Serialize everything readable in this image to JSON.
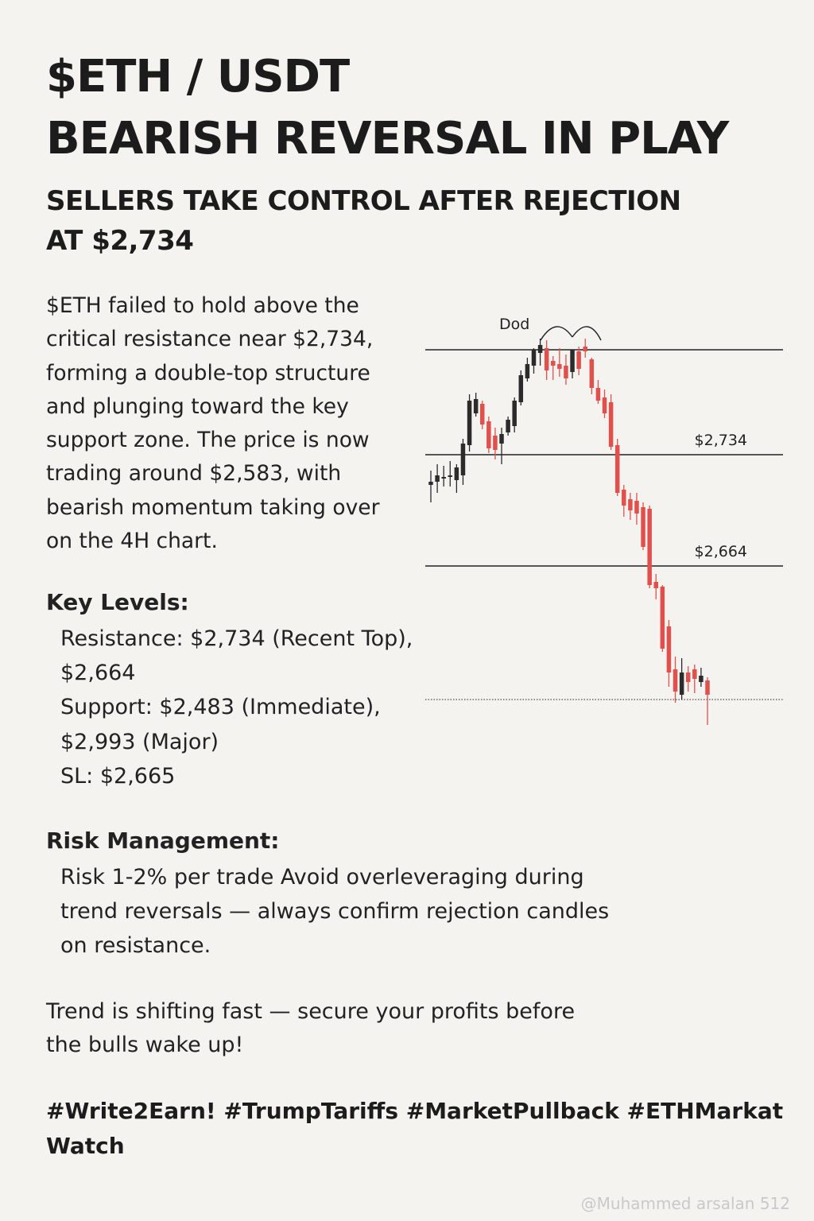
{
  "header": {
    "title_line1": "$ETH / USDT",
    "title_line2": "BEARISH REVERSAL IN PLAY",
    "subtitle_line1": "SELLERS TAKE CONTROL AFTER REJECTION",
    "subtitle_line2": "AT $2,734"
  },
  "intro": {
    "lines": [
      "$ETH failed to hold above the",
      "critical resistance near $2,734,",
      "forming a double-top structure",
      "and plunging toward the key",
      "support zone. The price is now",
      "trading around $2,583, with",
      "bearish momentum taking over",
      "on the 4H chart."
    ]
  },
  "key_levels": {
    "heading": "Key Levels:",
    "lines": [
      "Resistance: $2,734 (Recent Top),",
      "$2,664",
      "Support: $2,483 (Immediate),",
      "$2,993 (Major)",
      "SL: $2,665"
    ]
  },
  "risk": {
    "heading": "Risk Management:",
    "lines": [
      "Risk 1-2% per trade  Avoid overleveraging during",
      "trend reversals — always confirm rejection candles",
      "on resistance."
    ]
  },
  "closing": {
    "lines": [
      "Trend is shifting fast — secure your profits before",
      "the bulls wake up!"
    ]
  },
  "hashtags": {
    "line1": "#Write2Earn! #TrumpTariffs #MarketPullback #ETHMarkat",
    "line2": "Watch"
  },
  "watermark": "@Muhammed arsalan 512",
  "colors": {
    "bull": "#2b2b2b",
    "bear": "#e0504c",
    "line": "#222222",
    "background": "#f4f3f0"
  },
  "chart_data": {
    "type": "candlestick",
    "annotation": "Dod",
    "levels": [
      {
        "label": "",
        "value": 2800,
        "style": "solid"
      },
      {
        "label": "$2,734",
        "value": 2734,
        "style": "solid"
      },
      {
        "label": "$2,664",
        "value": 2664,
        "style": "solid"
      },
      {
        "label": "",
        "value": 2580,
        "style": "dotted"
      }
    ],
    "ylim": [
      2570,
      2820
    ],
    "candles": [
      {
        "o": 2715,
        "h": 2724,
        "l": 2704,
        "c": 2717
      },
      {
        "o": 2717,
        "h": 2728,
        "l": 2710,
        "c": 2721
      },
      {
        "o": 2719,
        "h": 2727,
        "l": 2714,
        "c": 2720
      },
      {
        "o": 2720,
        "h": 2730,
        "l": 2714,
        "c": 2721
      },
      {
        "o": 2718,
        "h": 2728,
        "l": 2710,
        "c": 2726
      },
      {
        "o": 2721,
        "h": 2744,
        "l": 2715,
        "c": 2741
      },
      {
        "o": 2740,
        "h": 2772,
        "l": 2736,
        "c": 2768
      },
      {
        "o": 2760,
        "h": 2773,
        "l": 2758,
        "c": 2769
      },
      {
        "o": 2766,
        "h": 2768,
        "l": 2750,
        "c": 2753
      },
      {
        "o": 2755,
        "h": 2758,
        "l": 2735,
        "c": 2738
      },
      {
        "o": 2746,
        "h": 2751,
        "l": 2731,
        "c": 2737
      },
      {
        "o": 2741,
        "h": 2751,
        "l": 2728,
        "c": 2747
      },
      {
        "o": 2748,
        "h": 2758,
        "l": 2746,
        "c": 2756
      },
      {
        "o": 2752,
        "h": 2770,
        "l": 2748,
        "c": 2768
      },
      {
        "o": 2767,
        "h": 2787,
        "l": 2765,
        "c": 2784
      },
      {
        "o": 2782,
        "h": 2795,
        "l": 2780,
        "c": 2791
      },
      {
        "o": 2790,
        "h": 2801,
        "l": 2785,
        "c": 2800
      },
      {
        "o": 2798,
        "h": 2807,
        "l": 2790,
        "c": 2803
      },
      {
        "o": 2801,
        "h": 2806,
        "l": 2781,
        "c": 2787
      },
      {
        "o": 2793,
        "h": 2796,
        "l": 2781,
        "c": 2790
      },
      {
        "o": 2791,
        "h": 2801,
        "l": 2783,
        "c": 2788
      },
      {
        "o": 2790,
        "h": 2797,
        "l": 2778,
        "c": 2782
      },
      {
        "o": 2786,
        "h": 2798,
        "l": 2782,
        "c": 2800
      },
      {
        "o": 2799,
        "h": 2802,
        "l": 2784,
        "c": 2788
      },
      {
        "o": 2802,
        "h": 2807,
        "l": 2795,
        "c": 2799
      },
      {
        "o": 2794,
        "h": 2795,
        "l": 2772,
        "c": 2776
      },
      {
        "o": 2776,
        "h": 2781,
        "l": 2766,
        "c": 2768
      },
      {
        "o": 2770,
        "h": 2775,
        "l": 2757,
        "c": 2760
      },
      {
        "o": 2767,
        "h": 2772,
        "l": 2737,
        "c": 2739
      },
      {
        "o": 2740,
        "h": 2744,
        "l": 2708,
        "c": 2710
      },
      {
        "o": 2712,
        "h": 2715,
        "l": 2695,
        "c": 2702
      },
      {
        "o": 2706,
        "h": 2710,
        "l": 2693,
        "c": 2699
      },
      {
        "o": 2705,
        "h": 2710,
        "l": 2690,
        "c": 2697
      },
      {
        "o": 2701,
        "h": 2704,
        "l": 2674,
        "c": 2676
      },
      {
        "o": 2700,
        "h": 2702,
        "l": 2650,
        "c": 2652
      },
      {
        "o": 2654,
        "h": 2659,
        "l": 2643,
        "c": 2650
      },
      {
        "o": 2651,
        "h": 2652,
        "l": 2610,
        "c": 2612
      },
      {
        "o": 2626,
        "h": 2630,
        "l": 2588,
        "c": 2597
      },
      {
        "o": 2599,
        "h": 2607,
        "l": 2578,
        "c": 2585
      },
      {
        "o": 2583,
        "h": 2606,
        "l": 2580,
        "c": 2597
      },
      {
        "o": 2597,
        "h": 2601,
        "l": 2585,
        "c": 2591
      },
      {
        "o": 2599,
        "h": 2602,
        "l": 2584,
        "c": 2593
      },
      {
        "o": 2591,
        "h": 2600,
        "l": 2588,
        "c": 2595
      },
      {
        "o": 2592,
        "h": 2594,
        "l": 2564,
        "c": 2583
      }
    ]
  }
}
